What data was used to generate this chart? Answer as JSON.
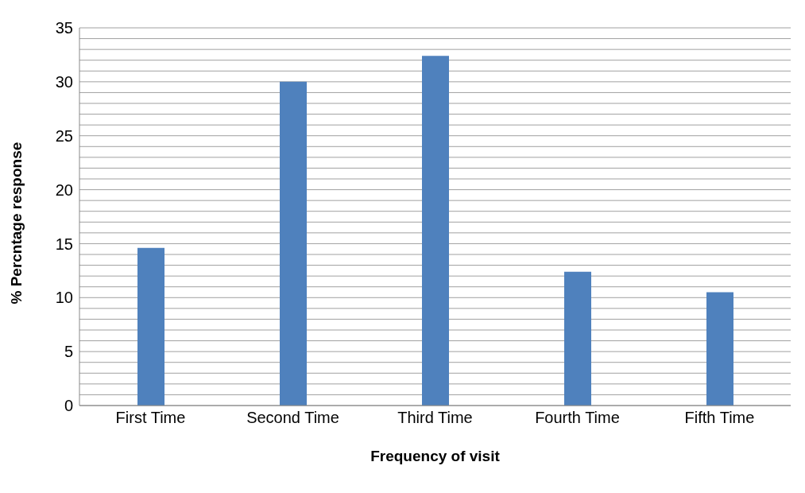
{
  "chart_data": {
    "type": "bar",
    "xlabel": "Frequency of visit",
    "ylabel": "% Percntage response",
    "categories": [
      "First Time",
      "Second Time",
      "Third Time",
      "Fourth Time",
      "Fifth Time"
    ],
    "values": [
      14.6,
      30,
      32.4,
      12.4,
      10.5
    ],
    "color": "#4f81bd",
    "ylim": [
      0,
      35
    ],
    "yticks": [
      0,
      {
        "value": 1,
        "label": null
      },
      {
        "value": 2,
        "label": null
      },
      {
        "value": 3,
        "label": null
      },
      {
        "value": 4,
        "label": null
      },
      5,
      {
        "value": 6,
        "label": null
      },
      {
        "value": 7,
        "label": null
      },
      {
        "value": 8,
        "label": null
      },
      {
        "value": 9,
        "label": null
      },
      10,
      {
        "value": 11,
        "label": null
      },
      {
        "value": 12,
        "label": null
      },
      {
        "value": 13,
        "label": null
      },
      {
        "value": 14,
        "label": null
      },
      15,
      {
        "value": 16,
        "label": null
      },
      {
        "value": 17,
        "label": null
      },
      {
        "value": 18,
        "label": null
      },
      {
        "value": 19,
        "label": null
      },
      20,
      {
        "value": 21,
        "label": null
      },
      {
        "value": 22,
        "label": null
      },
      {
        "value": 23,
        "label": null
      },
      {
        "value": 24,
        "label": null
      },
      25,
      {
        "value": 26,
        "label": null
      },
      {
        "value": 27,
        "label": null
      },
      {
        "value": 28,
        "label": null
      },
      {
        "value": 29,
        "label": null
      },
      30,
      {
        "value": 31,
        "label": null
      },
      {
        "value": 32,
        "label": null
      },
      {
        "value": 33,
        "label": null
      },
      {
        "value": 34,
        "label": null
      },
      35
    ],
    "grid": "y"
  }
}
